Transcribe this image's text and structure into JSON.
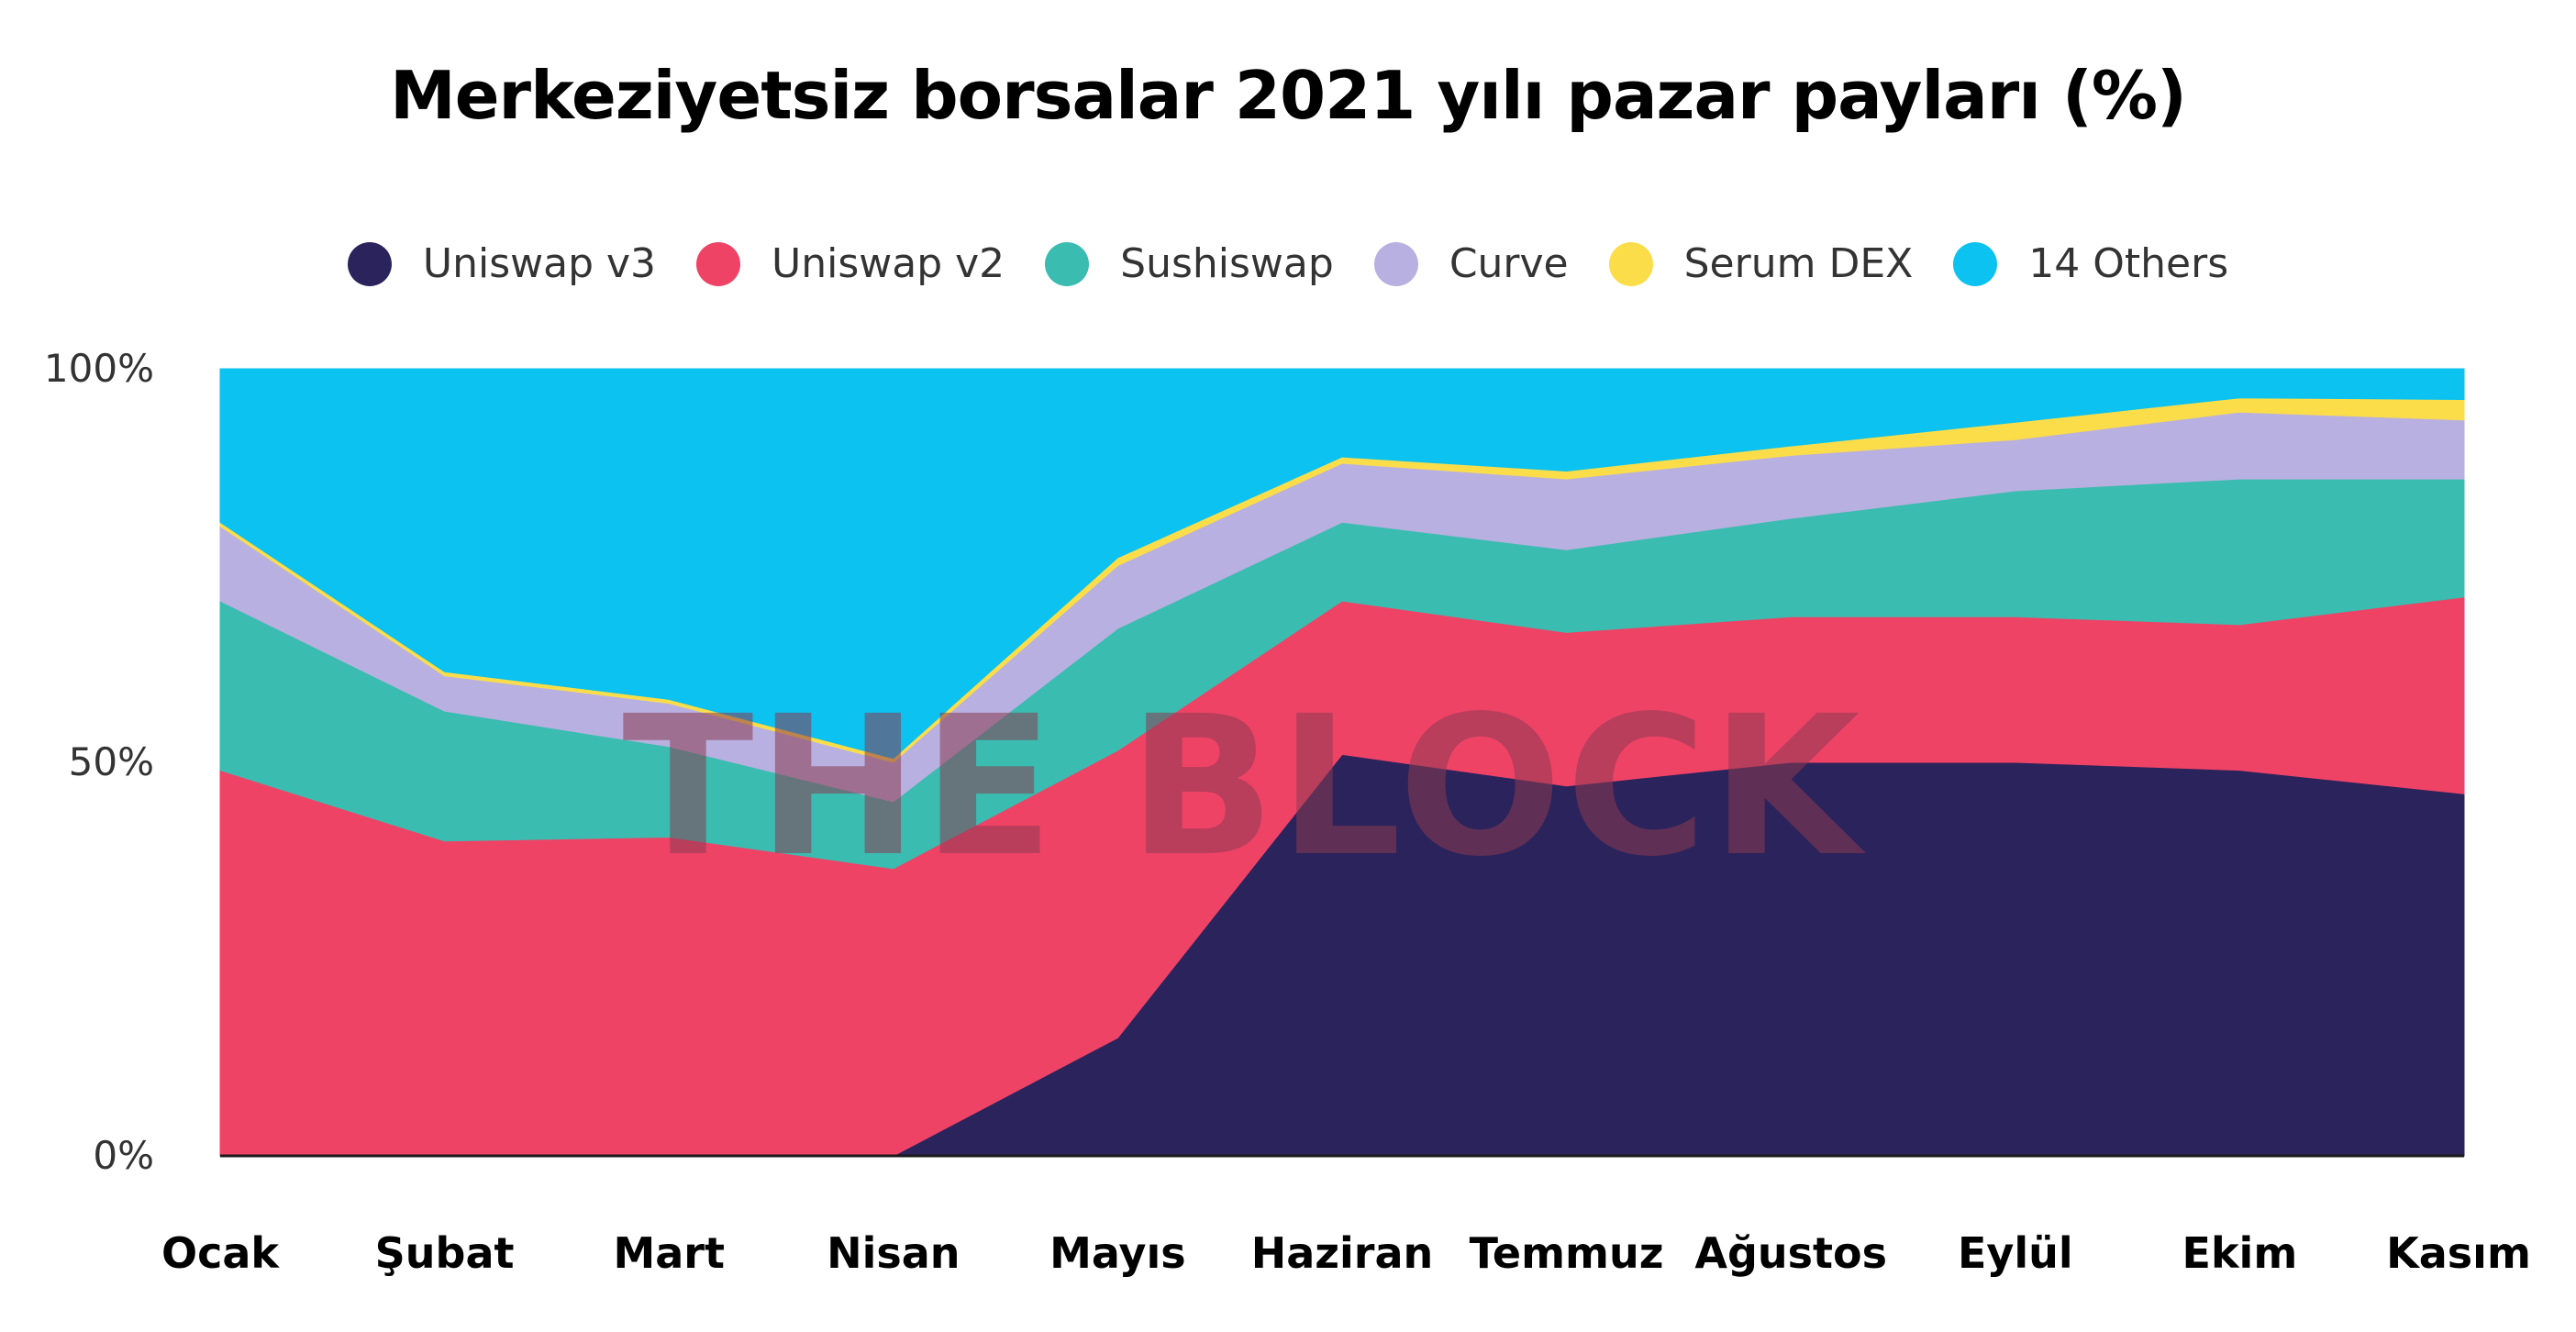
{
  "chart_data": {
    "type": "area",
    "stacked": true,
    "title": "Merkeziyetsiz borsalar 2021 yılı pazar payları (%)",
    "xlabel": "",
    "ylabel": "",
    "ylim": [
      0,
      100
    ],
    "y_ticks": [
      "0%",
      "50%",
      "100%"
    ],
    "y_tick_values": [
      0,
      50,
      100
    ],
    "categories": [
      "Ocak",
      "Şubat",
      "Mart",
      "Nisan",
      "Mayıs",
      "Haziran",
      "Temmuz",
      "Ağustos",
      "Eylül",
      "Ekim",
      "Kasım"
    ],
    "legend_position": "top",
    "grid": false,
    "series": [
      {
        "name": "Uniswap v3",
        "color": "#2b235c",
        "values": [
          0,
          0,
          0,
          0,
          15,
          51,
          47,
          50,
          50,
          49,
          46
        ]
      },
      {
        "name": "Uniswap v2",
        "color": "#ef4366",
        "values": [
          49,
          40,
          40.5,
          36.5,
          36.5,
          19.5,
          19.5,
          18.5,
          18.5,
          18.5,
          25
        ]
      },
      {
        "name": "Sushiswap",
        "color": "#3bbcb0",
        "values": [
          21.5,
          16.5,
          11.5,
          8.5,
          15.5,
          10,
          10.5,
          12.5,
          16,
          18.5,
          15
        ]
      },
      {
        "name": "Curve",
        "color": "#b8b0e0",
        "values": [
          9.5,
          4.5,
          5.5,
          5,
          8,
          7.5,
          9,
          8,
          6.5,
          8.5,
          7.5
        ]
      },
      {
        "name": "Serum DEX",
        "color": "#fbdd4a",
        "values": [
          0.5,
          0.5,
          0.5,
          0.5,
          1,
          0.8,
          1,
          1.2,
          2.2,
          1.8,
          2.6
        ]
      },
      {
        "name": "14 Others",
        "color": "#0bc2f0",
        "values": [
          19.5,
          38.5,
          42,
          49.5,
          24,
          11.2,
          13,
          9.8,
          6.8,
          3.7,
          3.9
        ]
      }
    ],
    "watermark": "THE BLOCK"
  }
}
